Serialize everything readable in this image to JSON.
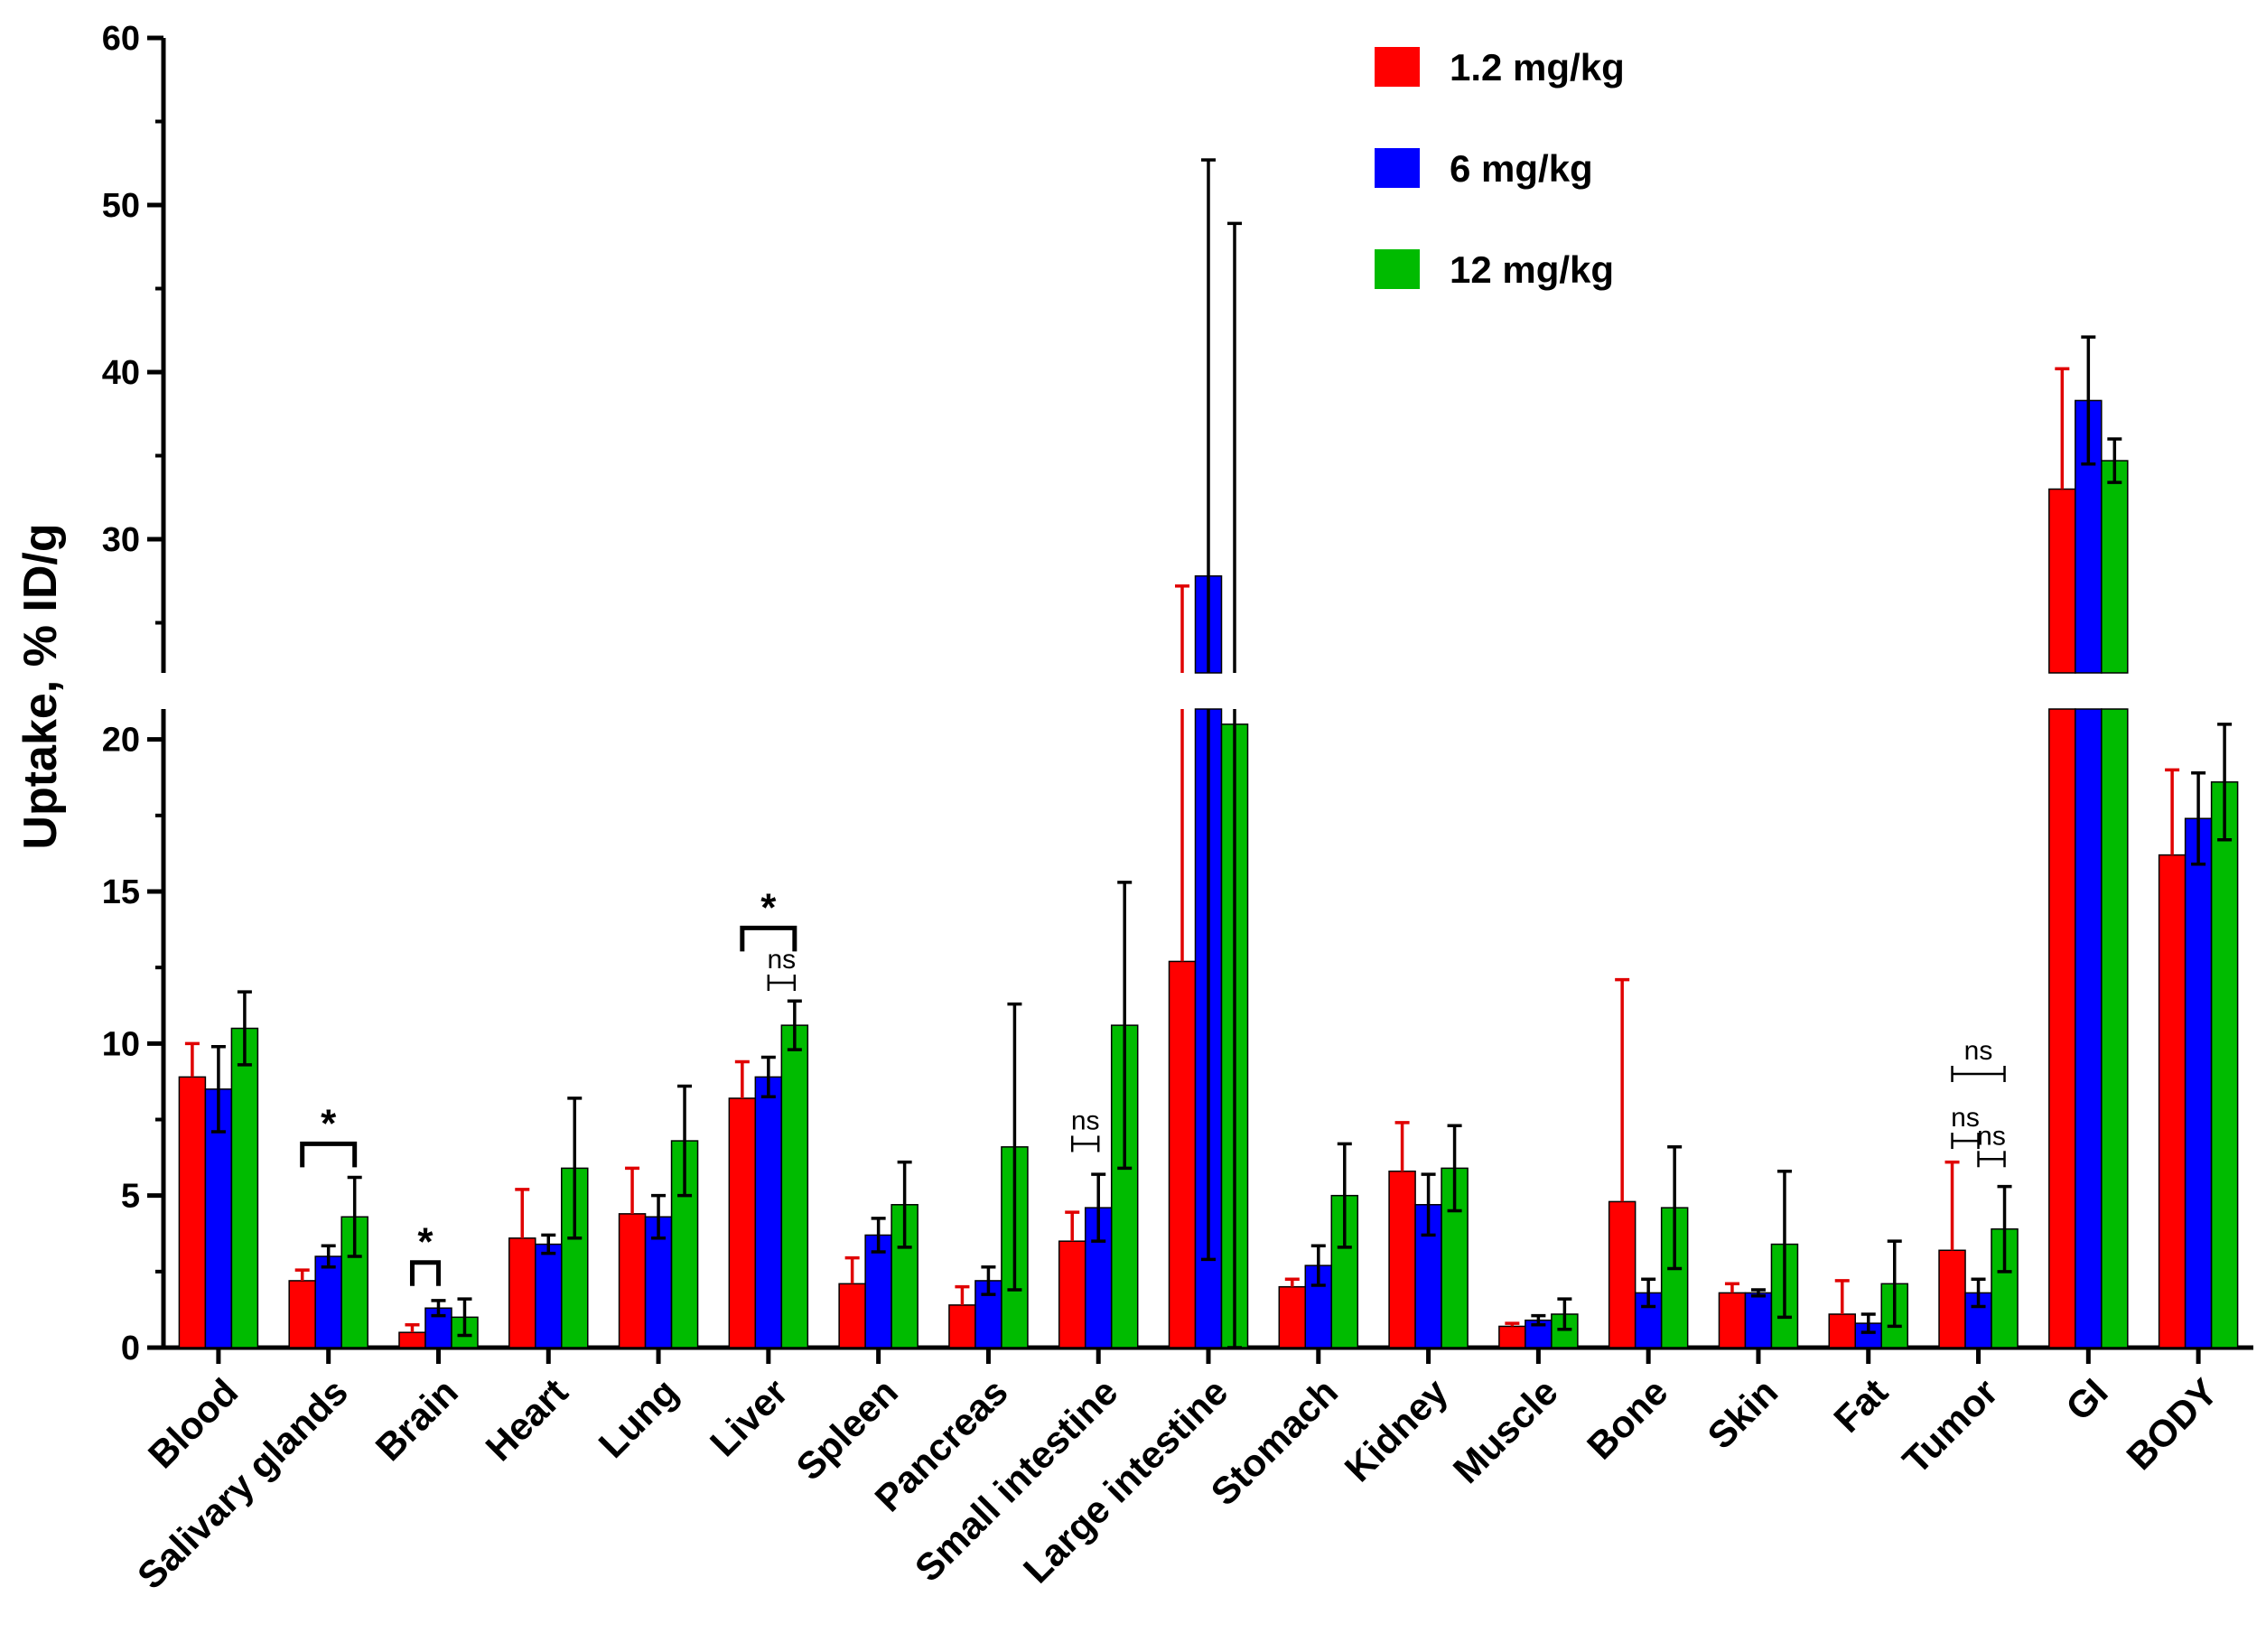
{
  "chart_data": {
    "type": "bar",
    "ylabel": "Uptake, % ID/g",
    "y_axis_break": [
      21,
      22
    ],
    "ylim": [
      0,
      60
    ],
    "lower_ticks": [
      0,
      5,
      10,
      15,
      20
    ],
    "upper_ticks": [
      30,
      40,
      50,
      60
    ],
    "categories": [
      "Blood",
      "Salivary glands",
      "Brain",
      "Heart",
      "Lung",
      "Liver",
      "Spleen",
      "Pancreas",
      "Small intestine",
      "Large intestine",
      "Stomach",
      "Kidney",
      "Muscle",
      "Bone",
      "Skin",
      "Fat",
      "Tumor",
      "GI",
      "BODY"
    ],
    "series": [
      {
        "name": "1.2 mg/kg",
        "color": "#ff0000",
        "values": [
          8.9,
          2.2,
          0.5,
          3.6,
          4.4,
          8.2,
          2.1,
          1.4,
          3.5,
          12.7,
          2.0,
          5.8,
          0.7,
          4.8,
          1.8,
          1.1,
          3.2,
          33.0,
          16.2
        ],
        "error": [
          1.1,
          0.35,
          0.25,
          1.6,
          1.5,
          1.2,
          0.85,
          0.6,
          0.95,
          14.5,
          0.25,
          1.6,
          0.1,
          7.3,
          0.3,
          1.1,
          2.9,
          7.2,
          2.8
        ]
      },
      {
        "name": "6 mg/kg",
        "color": "#0000ff",
        "values": [
          8.5,
          3.0,
          1.3,
          3.4,
          4.3,
          8.9,
          3.7,
          2.2,
          4.6,
          27.8,
          2.7,
          4.7,
          0.9,
          1.8,
          1.8,
          0.8,
          1.8,
          38.3,
          17.4
        ],
        "error": [
          1.4,
          0.35,
          0.25,
          0.3,
          0.7,
          0.65,
          0.55,
          0.45,
          1.1,
          24.9,
          0.65,
          1.0,
          0.15,
          0.45,
          0.1,
          0.3,
          0.45,
          3.8,
          1.5
        ]
      },
      {
        "name": "12 mg/kg",
        "color": "#00bb00",
        "values": [
          10.5,
          4.3,
          1.0,
          5.9,
          6.8,
          10.6,
          4.7,
          6.6,
          10.6,
          20.5,
          5.0,
          5.9,
          1.1,
          4.6,
          3.4,
          2.1,
          3.9,
          34.7,
          18.6
        ],
        "error": [
          1.2,
          1.3,
          0.6,
          2.3,
          1.8,
          0.8,
          1.4,
          4.7,
          4.7,
          28.4,
          1.7,
          1.4,
          0.5,
          2.0,
          2.4,
          1.4,
          1.4,
          1.3,
          1.9
        ]
      }
    ],
    "annotations": [
      {
        "label": "*",
        "category": "Salivary glands",
        "from_series": 0,
        "to_series": 2,
        "y": 6.7
      },
      {
        "label": "*",
        "category": "Brain",
        "from_series": 0,
        "to_series": 1,
        "y": 2.8
      },
      {
        "label": "*",
        "category": "Liver",
        "from_series": 0,
        "to_series": 2,
        "y": 13.8
      },
      {
        "label": "ns",
        "category": "Liver",
        "from_series": 1,
        "to_series": 2,
        "y": 12.0
      },
      {
        "label": "ns",
        "category": "Small intestine",
        "from_series": 0,
        "to_series": 1,
        "y": 6.7
      },
      {
        "label": "ns",
        "category": "Tumor",
        "from_series": 0,
        "to_series": 2,
        "y": 9.0
      },
      {
        "label": "ns",
        "category": "Tumor",
        "from_series": 0,
        "to_series": 1,
        "y": 6.8
      },
      {
        "label": "ns",
        "category": "Tumor",
        "from_series": 1,
        "to_series": 2,
        "y": 6.2
      }
    ],
    "legend_position": "top-right",
    "grid": false
  }
}
